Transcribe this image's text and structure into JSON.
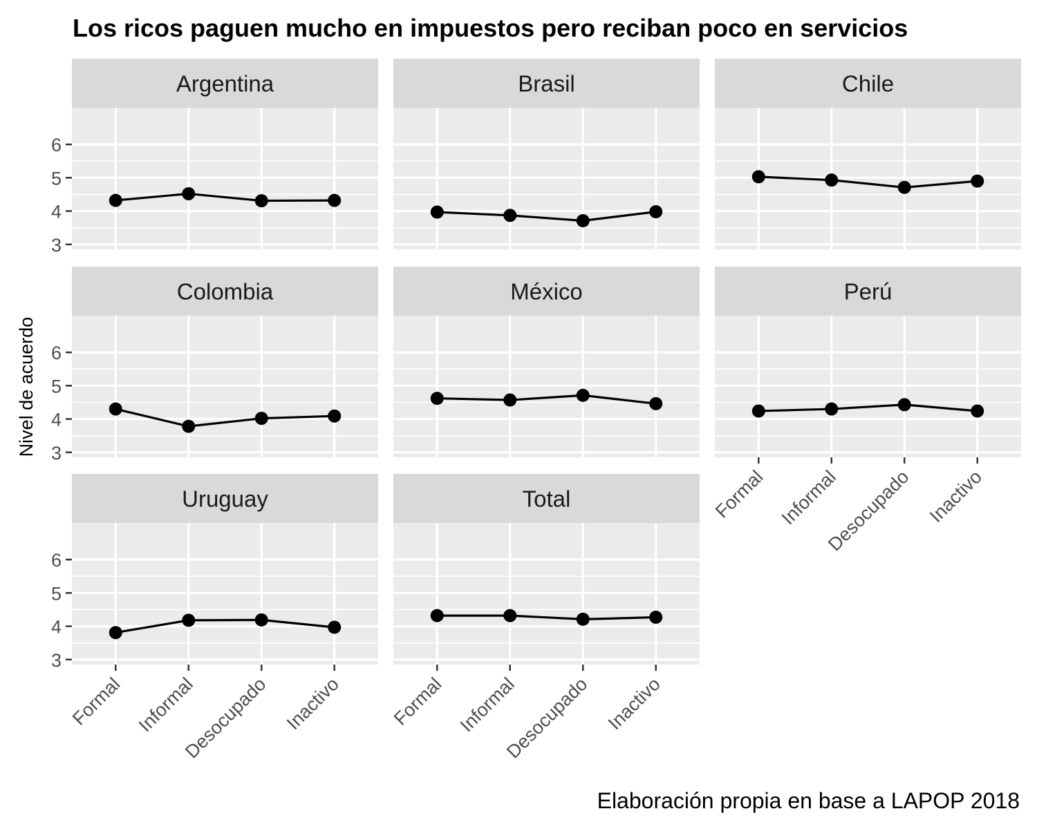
{
  "chart_data": {
    "type": "line",
    "title": "Los ricos paguen mucho en impuestos pero reciban poco en servicios",
    "ylabel": "Nivel de acuerdo",
    "xlabel": "",
    "caption": "Elaboración propia en base a LAPOP 2018",
    "categories": [
      "Formal",
      "Informal",
      "Desocupado",
      "Inactivo"
    ],
    "yticks": [
      3,
      4,
      5,
      6
    ],
    "ylim": [
      2.85,
      7.1
    ],
    "grid": true,
    "colors": {
      "panel_bg": "#ebebeb",
      "strip_bg": "#d9d9d9",
      "grid": "#ffffff",
      "line": "#000000",
      "point": "#000000",
      "tick": "#333333"
    },
    "panels": [
      {
        "name": "Argentina",
        "values": [
          4.32,
          4.52,
          4.31,
          4.32
        ]
      },
      {
        "name": "Brasil",
        "values": [
          3.97,
          3.87,
          3.71,
          3.98
        ]
      },
      {
        "name": "Chile",
        "values": [
          5.03,
          4.93,
          4.71,
          4.9
        ]
      },
      {
        "name": "Colombia",
        "values": [
          4.3,
          3.78,
          4.02,
          4.09
        ]
      },
      {
        "name": "México",
        "values": [
          4.62,
          4.57,
          4.71,
          4.46
        ]
      },
      {
        "name": "Perú",
        "values": [
          4.24,
          4.3,
          4.43,
          4.24
        ]
      },
      {
        "name": "Uruguay",
        "values": [
          3.81,
          4.18,
          4.19,
          3.97
        ]
      },
      {
        "name": "Total",
        "values": [
          4.32,
          4.32,
          4.21,
          4.27
        ]
      }
    ]
  }
}
